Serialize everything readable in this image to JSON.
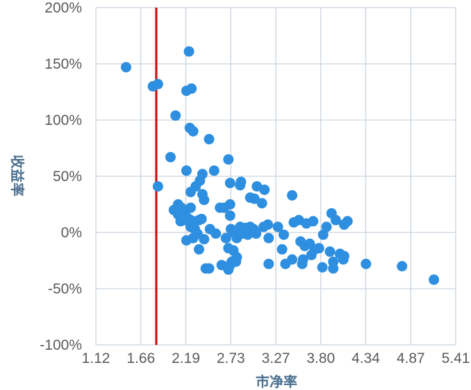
{
  "chart_data": {
    "type": "scatter",
    "title": "",
    "xlabel": "市净率",
    "ylabel": "收益率",
    "x_ticks": [
      "1.12",
      "1.66",
      "2.19",
      "2.73",
      "3.27",
      "3.80",
      "4.34",
      "4.87",
      "5.41"
    ],
    "y_ticks": [
      "200%",
      "150%",
      "100%",
      "50%",
      "0%",
      "-50%",
      "-100%"
    ],
    "xlim": [
      1.12,
      5.41
    ],
    "ylim": [
      -100,
      200
    ],
    "grid": true,
    "marker_color": "#2e8fe0",
    "reference_line": {
      "x": 1.84,
      "color": "#cc1111"
    },
    "points": [
      {
        "x": 1.48,
        "y": 147
      },
      {
        "x": 1.8,
        "y": 130
      },
      {
        "x": 1.86,
        "y": 132
      },
      {
        "x": 2.07,
        "y": 104
      },
      {
        "x": 2.2,
        "y": 126
      },
      {
        "x": 2.26,
        "y": 128
      },
      {
        "x": 2.23,
        "y": 161
      },
      {
        "x": 2.24,
        "y": 93
      },
      {
        "x": 2.28,
        "y": 90
      },
      {
        "x": 2.47,
        "y": 83
      },
      {
        "x": 2.01,
        "y": 67
      },
      {
        "x": 2.2,
        "y": 55
      },
      {
        "x": 2.39,
        "y": 52
      },
      {
        "x": 2.53,
        "y": 55
      },
      {
        "x": 2.36,
        "y": 46
      },
      {
        "x": 2.31,
        "y": 41
      },
      {
        "x": 2.25,
        "y": 36
      },
      {
        "x": 2.39,
        "y": 34
      },
      {
        "x": 2.41,
        "y": 29
      },
      {
        "x": 1.86,
        "y": 41
      },
      {
        "x": 2.7,
        "y": 65
      },
      {
        "x": 2.72,
        "y": 44
      },
      {
        "x": 2.85,
        "y": 45
      },
      {
        "x": 2.84,
        "y": 42
      },
      {
        "x": 2.96,
        "y": 31
      },
      {
        "x": 3.01,
        "y": 30
      },
      {
        "x": 3.04,
        "y": 41
      },
      {
        "x": 3.13,
        "y": 38
      },
      {
        "x": 3.1,
        "y": 26
      },
      {
        "x": 3.46,
        "y": 33
      },
      {
        "x": 2.72,
        "y": 25
      },
      {
        "x": 2.65,
        "y": 22
      },
      {
        "x": 2.6,
        "y": 22
      },
      {
        "x": 2.72,
        "y": 15
      },
      {
        "x": 2.05,
        "y": 20
      },
      {
        "x": 2.1,
        "y": 25
      },
      {
        "x": 2.14,
        "y": 22
      },
      {
        "x": 2.19,
        "y": 19
      },
      {
        "x": 2.25,
        "y": 22
      },
      {
        "x": 2.1,
        "y": 16
      },
      {
        "x": 2.15,
        "y": 14
      },
      {
        "x": 2.13,
        "y": 10
      },
      {
        "x": 2.18,
        "y": 11
      },
      {
        "x": 2.23,
        "y": 12
      },
      {
        "x": 2.28,
        "y": 10
      },
      {
        "x": 2.35,
        "y": 11
      },
      {
        "x": 2.38,
        "y": 12
      },
      {
        "x": 2.25,
        "y": 5
      },
      {
        "x": 2.3,
        "y": 3
      },
      {
        "x": 2.33,
        "y": -1
      },
      {
        "x": 2.28,
        "y": -5
      },
      {
        "x": 2.2,
        "y": -7
      },
      {
        "x": 2.41,
        "y": -6
      },
      {
        "x": 2.48,
        "y": 3
      },
      {
        "x": 2.55,
        "y": -1
      },
      {
        "x": 2.35,
        "y": -15
      },
      {
        "x": 2.43,
        "y": -32
      },
      {
        "x": 2.47,
        "y": -32
      },
      {
        "x": 2.62,
        "y": -29
      },
      {
        "x": 2.72,
        "y": -29
      },
      {
        "x": 2.7,
        "y": -33
      },
      {
        "x": 2.73,
        "y": 3
      },
      {
        "x": 2.76,
        "y": 0
      },
      {
        "x": 2.8,
        "y": -5
      },
      {
        "x": 2.84,
        "y": 5
      },
      {
        "x": 2.87,
        "y": -1
      },
      {
        "x": 2.9,
        "y": 4
      },
      {
        "x": 2.93,
        "y": -2
      },
      {
        "x": 2.96,
        "y": 5
      },
      {
        "x": 3.0,
        "y": 3
      },
      {
        "x": 3.03,
        "y": -1
      },
      {
        "x": 2.7,
        "y": -14
      },
      {
        "x": 2.76,
        "y": -16
      },
      {
        "x": 2.8,
        "y": -22
      },
      {
        "x": 2.74,
        "y": -26
      },
      {
        "x": 2.79,
        "y": -26
      },
      {
        "x": 2.67,
        "y": -5
      },
      {
        "x": 3.12,
        "y": 5
      },
      {
        "x": 3.17,
        "y": 7
      },
      {
        "x": 3.18,
        "y": -5
      },
      {
        "x": 3.29,
        "y": 5
      },
      {
        "x": 3.36,
        "y": -2
      },
      {
        "x": 3.34,
        "y": -15
      },
      {
        "x": 3.18,
        "y": -28
      },
      {
        "x": 3.38,
        "y": -28
      },
      {
        "x": 3.46,
        "y": -24
      },
      {
        "x": 3.48,
        "y": 9
      },
      {
        "x": 3.54,
        "y": 11
      },
      {
        "x": 3.56,
        "y": -8
      },
      {
        "x": 3.61,
        "y": -12
      },
      {
        "x": 3.63,
        "y": 8
      },
      {
        "x": 3.71,
        "y": 10
      },
      {
        "x": 3.67,
        "y": -10
      },
      {
        "x": 3.73,
        "y": -15
      },
      {
        "x": 3.69,
        "y": -20
      },
      {
        "x": 3.59,
        "y": -24
      },
      {
        "x": 3.58,
        "y": -28
      },
      {
        "x": 3.78,
        "y": -14
      },
      {
        "x": 3.83,
        "y": -2
      },
      {
        "x": 3.87,
        "y": 5
      },
      {
        "x": 3.91,
        "y": -17
      },
      {
        "x": 3.82,
        "y": -31
      },
      {
        "x": 3.93,
        "y": 17
      },
      {
        "x": 3.98,
        "y": 11
      },
      {
        "x": 3.95,
        "y": -26
      },
      {
        "x": 3.95,
        "y": -32
      },
      {
        "x": 4.03,
        "y": -19
      },
      {
        "x": 4.08,
        "y": -21
      },
      {
        "x": 4.07,
        "y": -24
      },
      {
        "x": 4.08,
        "y": 7
      },
      {
        "x": 4.12,
        "y": 10
      },
      {
        "x": 4.34,
        "y": -28
      },
      {
        "x": 4.77,
        "y": -30
      },
      {
        "x": 5.15,
        "y": -42
      }
    ]
  }
}
